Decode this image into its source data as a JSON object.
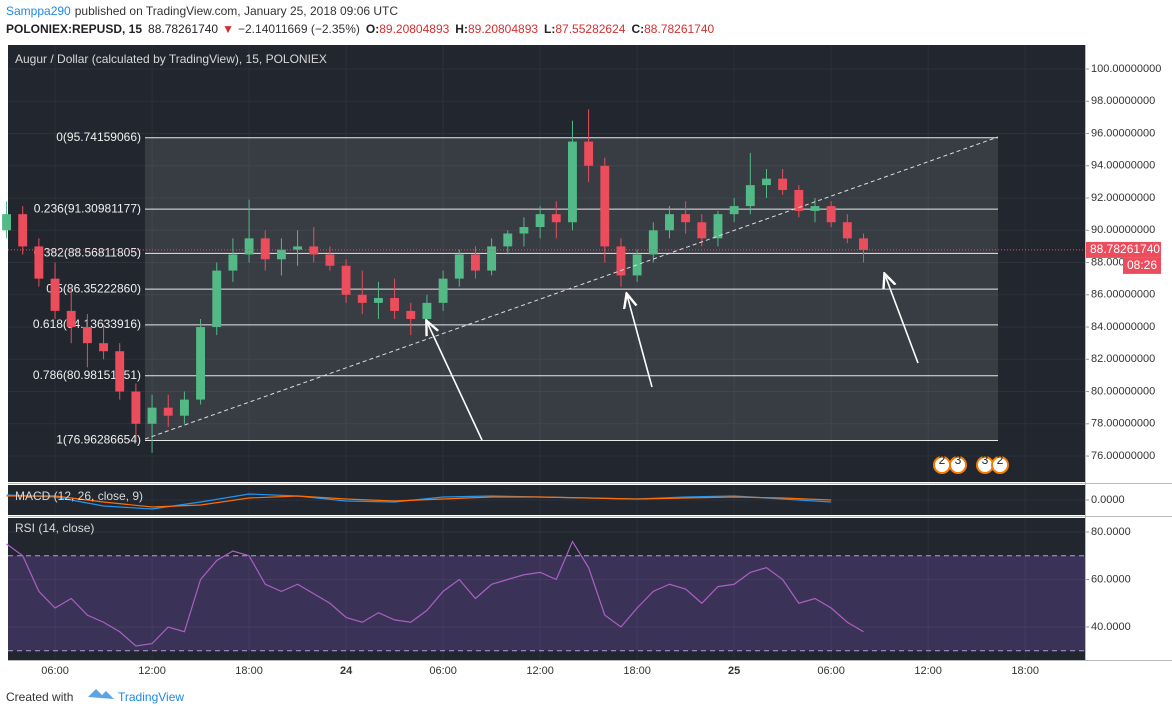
{
  "header": {
    "author": "Samppa290",
    "published": "published on TradingView.com, January 25, 2018 09:06 UTC",
    "symbol": "POLONIEX:REPUSD, 15",
    "last": "88.78261740",
    "change": "−2.14011669 (−2.35%)",
    "ohlc": [
      {
        "key": "O:",
        "value": "89.20804893"
      },
      {
        "key": "H:",
        "value": "89.20804893"
      },
      {
        "key": "L:",
        "value": "87.55282624"
      },
      {
        "key": "C:",
        "value": "88.78261740"
      }
    ]
  },
  "footer": {
    "created": "Created with",
    "brand": "TradingView"
  },
  "chart_data": [
    {
      "type": "candlestick",
      "title": "Augur / Dollar (calculated by TradingView), 15, POLONIEX",
      "x": [
        3,
        4,
        5,
        6,
        7,
        8,
        9,
        10,
        11,
        12,
        13,
        14,
        15,
        16,
        17,
        18,
        19,
        20,
        21,
        22,
        23,
        24,
        25,
        26,
        27,
        28,
        29,
        30,
        31,
        32,
        33,
        34,
        35,
        36,
        37,
        38,
        39,
        40,
        41,
        42,
        43,
        44,
        45,
        46,
        47,
        48,
        49,
        50,
        51,
        52,
        53,
        54,
        55,
        56
      ],
      "open": [
        90.0,
        91.0,
        89.0,
        87.0,
        85.0,
        84.0,
        83.0,
        82.5,
        80.0,
        78.0,
        79.0,
        78.5,
        79.5,
        84.0,
        87.5,
        88.5,
        89.5,
        88.2,
        88.8,
        89.0,
        88.5,
        87.8,
        86.0,
        85.5,
        85.8,
        85.0,
        84.5,
        85.5,
        87.0,
        88.5,
        87.5,
        89.0,
        89.8,
        90.2,
        91.0,
        90.5,
        95.5,
        94.0,
        89.0,
        87.2,
        88.5,
        90.0,
        91.0,
        90.5,
        89.5,
        91.0,
        91.5,
        92.8,
        93.2,
        92.5,
        91.2,
        91.5,
        90.5,
        89.5
      ],
      "high": [
        91.8,
        91.5,
        89.5,
        88.0,
        86.5,
        84.8,
        84.2,
        83.0,
        80.5,
        79.8,
        79.8,
        80.0,
        84.5,
        88.0,
        89.5,
        91.9,
        90.0,
        89.5,
        90.0,
        90.2,
        89.0,
        88.2,
        87.5,
        86.8,
        87.0,
        85.5,
        86.0,
        87.5,
        88.8,
        89.0,
        89.5,
        90.0,
        90.8,
        91.5,
        91.8,
        96.8,
        97.5,
        94.5,
        89.5,
        88.8,
        90.5,
        91.5,
        91.8,
        91.0,
        91.2,
        92.0,
        94.8,
        93.8,
        93.8,
        92.8,
        92.0,
        91.8,
        91.0,
        89.8
      ],
      "low": [
        89.5,
        88.5,
        86.5,
        84.5,
        83.0,
        81.5,
        82.0,
        79.5,
        77.0,
        76.2,
        77.8,
        78.0,
        79.2,
        83.5,
        86.8,
        88.0,
        87.5,
        87.2,
        87.8,
        88.0,
        87.5,
        85.5,
        84.8,
        84.5,
        84.5,
        83.5,
        84.0,
        85.0,
        86.5,
        87.0,
        87.2,
        88.5,
        89.0,
        89.5,
        89.5,
        90.0,
        93.0,
        88.0,
        86.5,
        86.8,
        88.0,
        89.5,
        89.8,
        89.0,
        89.0,
        90.5,
        91.0,
        92.0,
        92.2,
        90.8,
        90.5,
        90.2,
        89.2,
        88.0
      ],
      "close": [
        91.0,
        89.0,
        87.0,
        85.0,
        84.0,
        83.0,
        82.5,
        80.0,
        78.0,
        79.0,
        78.5,
        79.5,
        84.0,
        87.5,
        88.5,
        89.5,
        88.2,
        88.8,
        89.0,
        88.5,
        87.8,
        86.0,
        85.5,
        85.8,
        85.0,
        84.5,
        85.5,
        87.0,
        88.5,
        87.5,
        89.0,
        89.8,
        90.2,
        91.0,
        90.5,
        95.5,
        94.0,
        89.0,
        87.2,
        88.5,
        90.0,
        91.0,
        90.5,
        89.5,
        91.0,
        91.5,
        92.8,
        93.2,
        92.5,
        91.2,
        91.5,
        90.5,
        89.5,
        88.7826174
      ],
      "up_color": "#53b987",
      "down_color": "#eb4d5c",
      "xlim": [
        3.09,
        69.7
      ],
      "xticks": [
        {
          "value": 6,
          "label": "06:00"
        },
        {
          "value": 12,
          "label": "12:00"
        },
        {
          "value": 18,
          "label": "18:00"
        },
        24,
        {
          "value": 30,
          "label": "06:00"
        },
        {
          "value": 36,
          "label": "12:00"
        },
        {
          "value": 42,
          "label": "18:00"
        },
        {
          "value": 48,
          "label": "25"
        },
        {
          "value": 54,
          "label": "06:00"
        },
        {
          "value": 60,
          "label": "12:00"
        },
        {
          "value": 66,
          "label": "18:00"
        }
      ],
      "ylim": [
        74.39,
        101.49
      ],
      "yticks": [
        {
          "value": 76,
          "label": "76.00000000"
        },
        {
          "value": 78,
          "label": "78.00000000"
        },
        {
          "value": 80,
          "label": "80.00000000"
        },
        {
          "value": 82,
          "label": "82.00000000"
        },
        {
          "value": 84,
          "label": "84.00000000"
        },
        {
          "value": 86,
          "label": "86.00000000"
        },
        {
          "value": 88,
          "label": "88.00000000"
        },
        {
          "value": 90,
          "label": "90.00000000"
        },
        {
          "value": 92,
          "label": "92.00000000"
        },
        {
          "value": 94,
          "label": "94.00000000"
        },
        {
          "value": 96,
          "label": "96.00000000"
        },
        {
          "value": 98,
          "label": "98.00000000"
        },
        {
          "value": 100,
          "label": "100.00000000"
        }
      ],
      "fib_levels": [
        {
          "value": 95.74159066,
          "label": "0(95.74159066)"
        },
        {
          "value": 91.30981177,
          "label": "0.236(91.30981177)"
        },
        {
          "value": 88.56811805,
          "label": "0.382(88.56811805)"
        },
        {
          "value": 86.3522286,
          "label": "0.5(86.35222860)"
        },
        {
          "value": 84.13633916,
          "label": "0.618(84.13633916)"
        },
        {
          "value": 80.98151351,
          "label": "0.786(80.98151351)"
        },
        {
          "value": 76.96286654,
          "label": "1(76.96286654)"
        }
      ],
      "last_price": {
        "value": 88.7826174,
        "label": "88.78261740"
      },
      "countdown": "08:26",
      "event_labels": [
        "2",
        "3",
        "3",
        "2"
      ]
    },
    {
      "type": "line",
      "title": "MACD (12, 26, close, 9)",
      "x": [
        3,
        6,
        9,
        12,
        15,
        18,
        21,
        24,
        27,
        30,
        33,
        36,
        39,
        42,
        45,
        48,
        51,
        54
      ],
      "series": [
        {
          "color": "#2196f3",
          "values": [
            0.5,
            0.3,
            -0.6,
            -0.9,
            -0.2,
            0.6,
            0.4,
            -0.1,
            -0.2,
            0.3,
            0.4,
            0.3,
            0.2,
            0.1,
            0.3,
            0.4,
            0.1,
            -0.2
          ]
        },
        {
          "color": "#ff6d00",
          "values": [
            0.4,
            0.4,
            -0.2,
            -0.7,
            -0.5,
            0.2,
            0.4,
            0.1,
            -0.1,
            0.1,
            0.3,
            0.3,
            0.2,
            0.1,
            0.2,
            0.3,
            0.2,
            0.0
          ]
        }
      ],
      "xlim": [
        3.09,
        69.7
      ],
      "ylim": [
        -1.5,
        1.5
      ],
      "yticks": [
        {
          "value": 0,
          "label": "0.0000"
        }
      ]
    },
    {
      "type": "line",
      "title": "RSI (14, close)",
      "x": [
        3,
        4,
        5,
        6,
        7,
        8,
        9,
        10,
        11,
        12,
        13,
        14,
        15,
        16,
        17,
        18,
        19,
        20,
        21,
        22,
        23,
        24,
        25,
        26,
        27,
        28,
        29,
        30,
        31,
        32,
        33,
        34,
        35,
        36,
        37,
        38,
        39,
        40,
        41,
        42,
        43,
        44,
        45,
        46,
        47,
        48,
        49,
        50,
        51,
        52,
        53,
        54,
        55,
        56
      ],
      "series": [
        {
          "color": "#ab5fc4",
          "values": [
            75,
            70,
            55,
            48,
            52,
            45,
            42,
            38,
            32,
            33,
            40,
            38,
            60,
            68,
            72,
            70,
            58,
            55,
            58,
            54,
            50,
            44,
            42,
            46,
            43,
            42,
            47,
            55,
            60,
            52,
            58,
            60,
            62,
            63,
            60,
            76,
            65,
            45,
            40,
            48,
            55,
            58,
            56,
            50,
            57,
            58,
            63,
            65,
            60,
            50,
            52,
            48,
            42,
            38
          ]
        }
      ],
      "band": [
        30,
        70
      ],
      "xlim": [
        3.09,
        69.7
      ],
      "ylim": [
        26.1,
        85.9
      ],
      "yticks": [
        {
          "value": 40,
          "label": "40.0000"
        },
        {
          "value": 60,
          "label": "60.0000"
        },
        {
          "value": 80,
          "label": "80.0000"
        }
      ]
    }
  ]
}
